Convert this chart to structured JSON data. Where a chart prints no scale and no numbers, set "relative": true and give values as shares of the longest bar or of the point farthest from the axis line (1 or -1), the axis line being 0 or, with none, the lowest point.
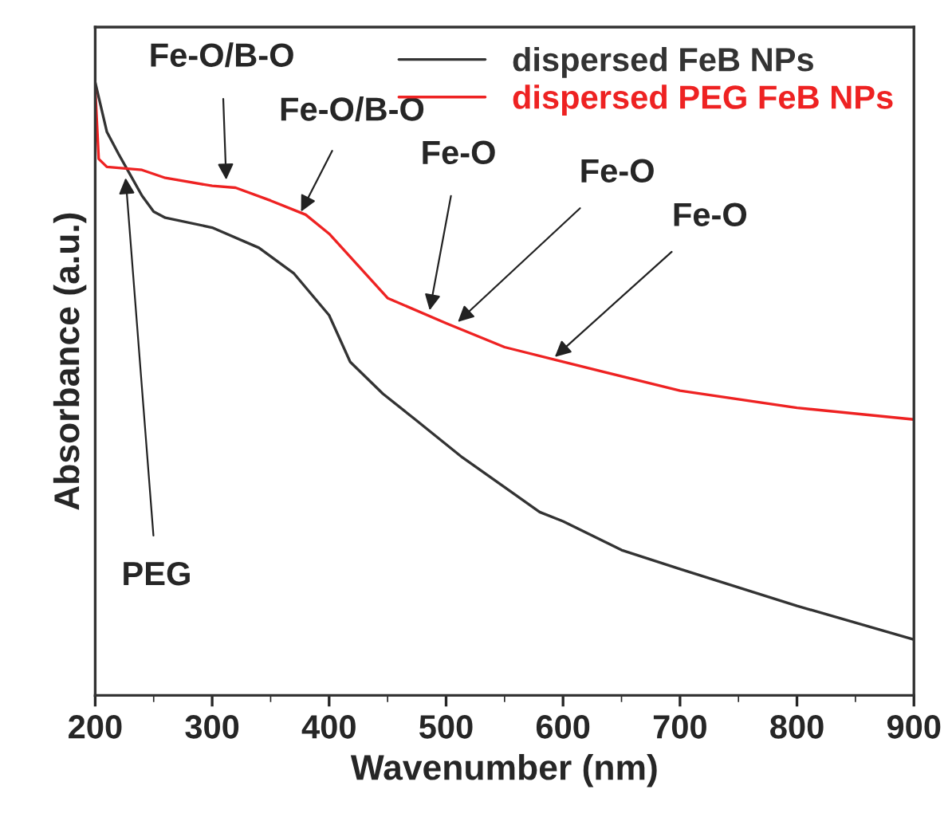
{
  "chart_data": {
    "type": "line",
    "relative": true,
    "xlabel": "Wavenumber (nm)",
    "ylabel": "Absorbance (a.u.)",
    "xlim": [
      200,
      900
    ],
    "xticks": [
      200,
      300,
      400,
      500,
      600,
      700,
      800,
      900
    ],
    "legend": "top right",
    "grid": false,
    "tick_labels": "x",
    "series": [
      {
        "name": "dispersed FeB NPs",
        "color": "#333333",
        "x": [
          200,
          210,
          220,
          230,
          240,
          250,
          260,
          300,
          340,
          370,
          400,
          418,
          446,
          473,
          514,
          555,
          580,
          600,
          650,
          700,
          800,
          900
        ],
        "values": [
          1.0,
          0.919,
          0.883,
          0.849,
          0.815,
          0.789,
          0.779,
          0.763,
          0.73,
          0.688,
          0.62,
          0.544,
          0.492,
          0.451,
          0.388,
          0.333,
          0.299,
          0.284,
          0.237,
          0.206,
          0.146,
          0.091
        ]
      },
      {
        "name": "dispersed PEG FeB NPs",
        "color": "#ee2222",
        "x": [
          200,
          203,
          210,
          240,
          260,
          300,
          320,
          350,
          380,
          400,
          450,
          500,
          550,
          600,
          700,
          800,
          900
        ],
        "values": [
          0.99,
          0.875,
          0.862,
          0.857,
          0.844,
          0.831,
          0.828,
          0.807,
          0.784,
          0.753,
          0.648,
          0.607,
          0.568,
          0.544,
          0.497,
          0.469,
          0.45
        ]
      }
    ],
    "annotations": [
      {
        "text": "Fe-O/B-O",
        "x": 312,
        "y": 0.841
      },
      {
        "text": "Fe-O/B-O",
        "x": 376,
        "y": 0.789
      },
      {
        "text": "Fe-O",
        "x": 486,
        "y": 0.628
      },
      {
        "text": "Fe-O",
        "x": 510,
        "y": 0.609
      },
      {
        "text": "Fe-O",
        "x": 593,
        "y": 0.552
      },
      {
        "text": "PEG",
        "x": 226,
        "y": 0.844
      }
    ]
  }
}
